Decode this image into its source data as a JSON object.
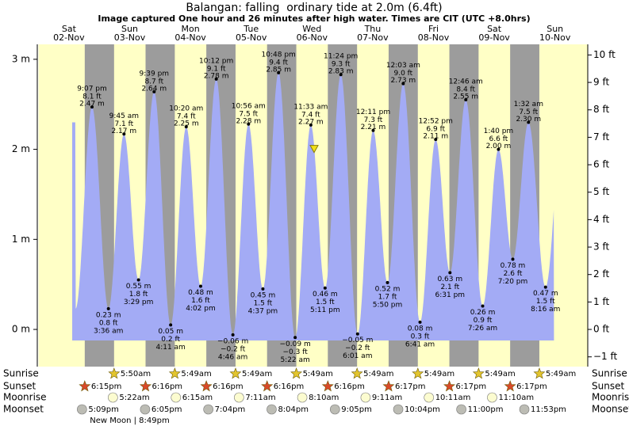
{
  "chart_data": {
    "type": "tide",
    "title": "Balangan: falling  ordinary tide at 2.0m (6.4ft)",
    "subtitle": "Image captured One hour and 26 minutes after high water. Times are CIT (UTC +8.0hrs)",
    "marker": {
      "height": 2.0
    },
    "ylim": [
      -0.413,
      3.166
    ],
    "yticks": [
      {
        "value": 0,
        "label": "0 m"
      },
      {
        "value": 1,
        "label": "1 m"
      },
      {
        "value": 2,
        "label": "2 m"
      },
      {
        "value": 3,
        "label": "3 m"
      }
    ],
    "y2lim": [
      -1.355,
      10.387
    ],
    "y2ticks": [
      {
        "value": -1,
        "label": "−1 ft"
      },
      {
        "value": 0,
        "label": "0 ft"
      },
      {
        "value": 1,
        "label": "1 ft"
      },
      {
        "value": 2,
        "label": "2 ft"
      },
      {
        "value": 3,
        "label": "3 ft"
      },
      {
        "value": 4,
        "label": "4 ft"
      },
      {
        "value": 5,
        "label": "5 ft"
      },
      {
        "value": 6,
        "label": "6 ft"
      },
      {
        "value": 7,
        "label": "7 ft"
      },
      {
        "value": 8,
        "label": "8 ft"
      },
      {
        "value": 9,
        "label": "9 ft"
      },
      {
        "value": 10,
        "label": "10 ft"
      }
    ],
    "row_labels": {
      "sunrise": "Sunrise",
      "sunset": "Sunset",
      "moonrise": "Moonrise",
      "moonset": "Moonset"
    },
    "colors": {
      "day": "#ffffc6",
      "night": "#9c9c9c",
      "water": "#a3abf5",
      "day_label": "#e8120c"
    },
    "days": [
      {
        "dow": "Sat",
        "date": "02-Nov",
        "sunset": "6:15pm",
        "moonset": "5:09pm",
        "tides": [
          {
            "type": "high",
            "time": "9:07 pm",
            "ft": "8.1 ft",
            "m": 2.47,
            "m_label": "2.47 m"
          }
        ]
      },
      {
        "dow": "Sun",
        "date": "03-Nov",
        "sunrise": "5:50am",
        "sunset": "6:16pm",
        "moonrise": "5:22am",
        "moonset": "6:05pm",
        "phase": "New Moon | 8:49pm",
        "tides": [
          {
            "type": "low",
            "time": "3:36 am",
            "ft": "0.8 ft",
            "m": 0.23,
            "m_label": "0.23 m"
          },
          {
            "type": "high",
            "time": "9:45 am",
            "ft": "7.1 ft",
            "m": 2.17,
            "m_label": "2.17 m"
          },
          {
            "type": "low",
            "time": "3:29 pm",
            "ft": "1.8 ft",
            "m": 0.55,
            "m_label": "0.55 m"
          },
          {
            "type": "high",
            "time": "9:39 pm",
            "ft": "8.7 ft",
            "m": 2.64,
            "m_label": "2.64 m"
          }
        ]
      },
      {
        "dow": "Mon",
        "date": "04-Nov",
        "sunrise": "5:49am",
        "sunset": "6:16pm",
        "moonrise": "6:15am",
        "moonset": "7:04pm",
        "tides": [
          {
            "type": "low",
            "time": "4:11 am",
            "ft": "0.2 ft",
            "m": 0.05,
            "m_label": "0.05 m"
          },
          {
            "type": "high",
            "time": "10:20 am",
            "ft": "7.4 ft",
            "m": 2.25,
            "m_label": "2.25 m"
          },
          {
            "type": "low",
            "time": "4:02 pm",
            "ft": "1.6 ft",
            "m": 0.48,
            "m_label": "0.48 m"
          },
          {
            "type": "high",
            "time": "10:12 pm",
            "ft": "9.1 ft",
            "m": 2.78,
            "m_label": "2.78 m"
          }
        ]
      },
      {
        "dow": "Tue",
        "date": "05-Nov",
        "sunrise": "5:49am",
        "sunset": "6:16pm",
        "moonrise": "7:11am",
        "moonset": "8:04pm",
        "tides": [
          {
            "type": "low",
            "time": "4:46 am",
            "ft": "−0.2 ft",
            "m": -0.06,
            "m_label": "−0.06 m"
          },
          {
            "type": "high",
            "time": "10:56 am",
            "ft": "7.5 ft",
            "m": 2.28,
            "m_label": "2.28 m"
          },
          {
            "type": "low",
            "time": "4:37 pm",
            "ft": "1.5 ft",
            "m": 0.45,
            "m_label": "0.45 m"
          },
          {
            "type": "high",
            "time": "10:48 pm",
            "ft": "9.4 ft",
            "m": 2.85,
            "m_label": "2.85 m"
          }
        ]
      },
      {
        "dow": "Wed",
        "date": "06-Nov",
        "sunrise": "5:49am",
        "sunset": "6:16pm",
        "moonrise": "8:10am",
        "moonset": "9:05pm",
        "tides": [
          {
            "type": "low",
            "time": "5:22 am",
            "ft": "−0.3 ft",
            "m": -0.09,
            "m_label": "−0.09 m"
          },
          {
            "type": "high",
            "time": "11:33 am",
            "ft": "7.4 ft",
            "m": 2.27,
            "m_label": "2.27 m"
          },
          {
            "type": "low",
            "time": "5:11 pm",
            "ft": "1.5 ft",
            "m": 0.46,
            "m_label": "0.46 m"
          },
          {
            "type": "high",
            "time": "11:24 pm",
            "ft": "9.3 ft",
            "m": 2.83,
            "m_label": "2.83 m"
          }
        ]
      },
      {
        "dow": "Thu",
        "date": "07-Nov",
        "sunrise": "5:49am",
        "sunset": "6:17pm",
        "moonrise": "9:11am",
        "moonset": "10:04pm",
        "tides": [
          {
            "type": "low",
            "time": "6:01 am",
            "ft": "−0.2 ft",
            "m": -0.05,
            "m_label": "−0.05 m"
          },
          {
            "type": "high",
            "time": "12:11 pm",
            "ft": "7.3 ft",
            "m": 2.21,
            "m_label": "2.21 m"
          },
          {
            "type": "low",
            "time": "5:50 pm",
            "ft": "1.7 ft",
            "m": 0.52,
            "m_label": "0.52 m"
          }
        ]
      },
      {
        "dow": "Fri",
        "date": "08-Nov",
        "sunrise": "5:49am",
        "sunset": "6:17pm",
        "moonrise": "10:11am",
        "moonset": "11:00pm",
        "tides": [
          {
            "type": "high",
            "time": "12:03 am",
            "ft": "9.0 ft",
            "m": 2.73,
            "m_label": "2.73 m"
          },
          {
            "type": "low",
            "time": "6:41 am",
            "ft": "0.3 ft",
            "m": 0.08,
            "m_label": "0.08 m"
          },
          {
            "type": "high",
            "time": "12:52 pm",
            "ft": "6.9 ft",
            "m": 2.11,
            "m_label": "2.11 m"
          },
          {
            "type": "low",
            "time": "6:31 pm",
            "ft": "2.1 ft",
            "m": 0.63,
            "m_label": "0.63 m"
          }
        ]
      },
      {
        "dow": "Sat",
        "date": "09-Nov",
        "sunrise": "5:49am",
        "sunset": "6:17pm",
        "moonrise": "11:10am",
        "moonset": "11:53pm",
        "tides": [
          {
            "type": "high",
            "time": "12:46 am",
            "ft": "8.4 ft",
            "m": 2.55,
            "m_label": "2.55 m"
          },
          {
            "type": "low",
            "time": "7:26 am",
            "ft": "0.9 ft",
            "m": 0.26,
            "m_label": "0.26 m"
          },
          {
            "type": "high",
            "time": "1:40 pm",
            "ft": "6.6 ft",
            "m": 2.0,
            "m_label": "2.00 m"
          },
          {
            "type": "low",
            "time": "7:20 pm",
            "ft": "2.6 ft",
            "m": 0.78,
            "m_label": "0.78 m"
          }
        ]
      },
      {
        "dow": "Sun",
        "date": "10-Nov",
        "sunrise": "5:49am",
        "tides": [
          {
            "type": "high",
            "time": "1:32 am",
            "ft": "7.5 ft",
            "m": 2.3,
            "m_label": "2.30 m"
          },
          {
            "type": "low",
            "time": "8:16 am",
            "ft": "1.5 ft",
            "m": 0.47,
            "m_label": "0.47 m"
          }
        ]
      }
    ]
  }
}
